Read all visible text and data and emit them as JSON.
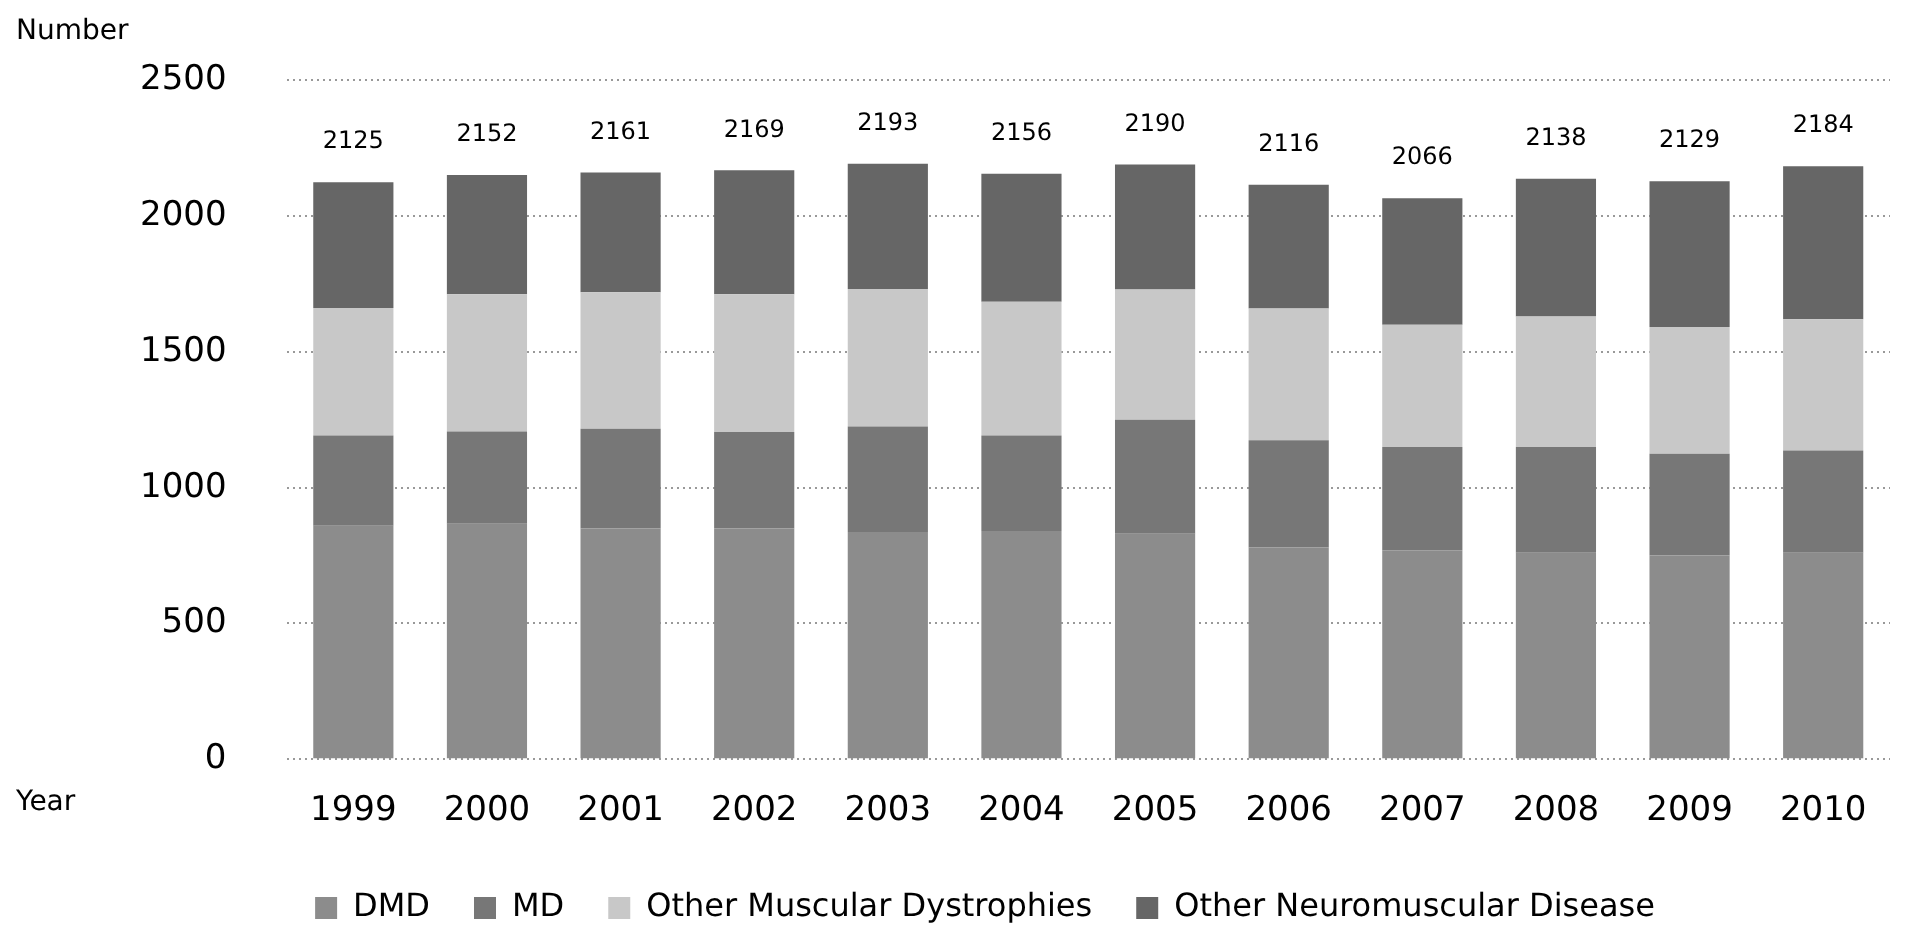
{
  "chart_data": {
    "type": "bar",
    "stacked": true,
    "ylabel": "Number",
    "xlabel": "Year",
    "categories": [
      "1999",
      "2000",
      "2001",
      "2002",
      "2003",
      "2004",
      "2005",
      "2006",
      "2007",
      "2008",
      "2009",
      "2010"
    ],
    "series": [
      {
        "name": "DMD",
        "color": "#8c8c8c",
        "values": [
          860,
          867,
          850,
          850,
          837,
          840,
          830,
          780,
          770,
          760,
          750,
          760
        ]
      },
      {
        "name": "MD",
        "color": "#777777",
        "values": [
          332,
          340,
          367,
          355,
          388,
          352,
          420,
          395,
          380,
          390,
          375,
          377
        ]
      },
      {
        "name": "Other Muscular Dystrophies",
        "color": "#c8c8c8",
        "values": [
          470,
          505,
          503,
          507,
          507,
          493,
          480,
          485,
          450,
          480,
          467,
          483
        ]
      },
      {
        "name": "Other Neuromuscular Disease",
        "color": "#666666",
        "values": [
          463,
          440,
          441,
          457,
          461,
          471,
          460,
          456,
          466,
          508,
          537,
          564
        ]
      }
    ],
    "totals": [
      "2125",
      "2152",
      "2161",
      "2169",
      "2193",
      "2156",
      "2190",
      "2116",
      "2066",
      "2138",
      "2129",
      "2184"
    ],
    "ylim": [
      0,
      2500
    ],
    "yticks": [
      0,
      500,
      1000,
      1500,
      2000,
      2500
    ],
    "grid": "y",
    "legend": "bottom"
  }
}
